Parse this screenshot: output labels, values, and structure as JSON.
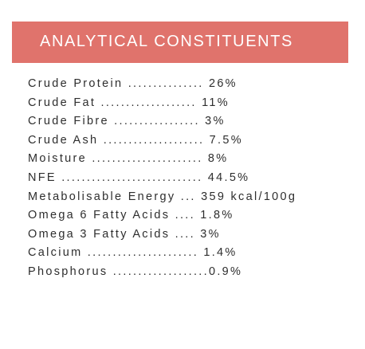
{
  "header": {
    "title": "ANALYTICAL CONSTITUENTS"
  },
  "rows": [
    "Crude Protein ............... 26%",
    "Crude Fat ................... 11%",
    "Crude Fibre ................. 3%",
    "Crude Ash .................... 7.5%",
    "Moisture ...................... 8%",
    "NFE ............................ 44.5%",
    "Metabolisable Energy ... 359 kcal/100g",
    "Omega 6 Fatty Acids .... 1.8%",
    "Omega 3 Fatty Acids .... 3%",
    "Calcium ...................... 1.4%",
    "Phosphorus ...................0.9%"
  ]
}
